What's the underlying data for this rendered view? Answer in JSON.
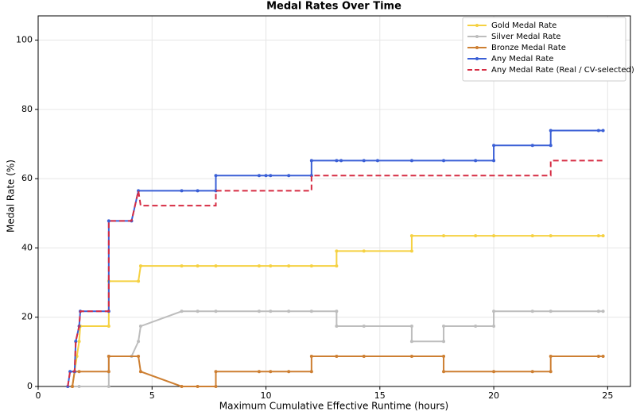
{
  "chart_data": {
    "type": "line",
    "title": "Medal Rates Over Time",
    "x_label": "Maximum Cumulative Effective Runtime (hours)",
    "y_label": "Medal Rate (%)",
    "xlim": [
      0,
      26
    ],
    "ylim": [
      0,
      107
    ],
    "xticks": [
      0,
      5,
      10,
      15,
      20,
      25
    ],
    "yticks": [
      0,
      20,
      40,
      60,
      80,
      100
    ],
    "grid": true,
    "legend": "upper right",
    "series": [
      {
        "name": "Gold Medal Rate",
        "color": "#f5d142",
        "dashed": false,
        "markers": true,
        "x": [
          1.5,
          1.6,
          1.7,
          1.8,
          1.85,
          3.1,
          3.1,
          4.4,
          4.5,
          6.3,
          7,
          7.8,
          9.7,
          10.2,
          11,
          12,
          13.1,
          13.1,
          14.3,
          16.4,
          16.4,
          17.8,
          19.2,
          20,
          21.7,
          22.5,
          24.6,
          24.8
        ],
        "values": [
          0,
          4.3,
          8.7,
          13,
          17.4,
          17.4,
          30.4,
          30.4,
          34.8,
          34.8,
          34.8,
          34.8,
          34.8,
          34.8,
          34.8,
          34.8,
          34.8,
          39.1,
          39.1,
          39.1,
          43.5,
          43.5,
          43.5,
          43.5,
          43.5,
          43.5,
          43.5,
          43.5
        ]
      },
      {
        "name": "Silver Medal Rate",
        "color": "#bdbdbd",
        "dashed": false,
        "markers": true,
        "x": [
          1.5,
          1.8,
          3.1,
          3.1,
          4.1,
          4.4,
          4.5,
          6.3,
          7,
          7.8,
          9.7,
          10.2,
          11,
          12,
          13.1,
          13.1,
          14.3,
          16.4,
          16.4,
          17.8,
          17.8,
          19.2,
          20,
          20,
          21.7,
          22.5,
          24.6,
          24.8
        ],
        "values": [
          0,
          0,
          0,
          8.7,
          8.7,
          13,
          17.4,
          21.7,
          21.7,
          21.7,
          21.7,
          21.7,
          21.7,
          21.7,
          21.7,
          17.4,
          17.4,
          17.4,
          13,
          13,
          17.4,
          17.4,
          17.4,
          21.7,
          21.7,
          21.7,
          21.7,
          21.7
        ]
      },
      {
        "name": "Bronze Medal Rate",
        "color": "#cd7f32",
        "dashed": false,
        "markers": true,
        "x": [
          1.5,
          1.6,
          1.8,
          3.1,
          3.1,
          4.4,
          4.5,
          6.3,
          7,
          7.8,
          7.8,
          9.7,
          10.2,
          11,
          12,
          12,
          13.1,
          14.3,
          16.4,
          17.8,
          17.8,
          20,
          21.7,
          22.5,
          22.5,
          24.6,
          24.8
        ],
        "values": [
          0,
          4.3,
          4.3,
          4.3,
          8.7,
          8.7,
          4.3,
          0,
          0,
          0,
          4.3,
          4.3,
          4.3,
          4.3,
          4.3,
          8.7,
          8.7,
          8.7,
          8.7,
          8.7,
          4.3,
          4.3,
          4.3,
          4.3,
          8.7,
          8.7,
          8.7
        ]
      },
      {
        "name": "Any Medal Rate",
        "color": "#3a5fd6",
        "dashed": false,
        "markers": true,
        "x": [
          1.3,
          1.4,
          1.6,
          1.65,
          1.8,
          1.85,
          3.1,
          3.1,
          4.1,
          4.4,
          6.3,
          7,
          7.8,
          7.8,
          9.7,
          10,
          10.2,
          11,
          12,
          12,
          13.1,
          13.3,
          14.3,
          14.9,
          16.4,
          17.8,
          19.2,
          20,
          20,
          21.7,
          22.5,
          22.5,
          24.6,
          24.8
        ],
        "values": [
          0,
          4.3,
          4.3,
          13,
          17.4,
          21.7,
          21.7,
          47.8,
          47.8,
          56.5,
          56.5,
          56.5,
          56.5,
          60.9,
          60.9,
          60.9,
          60.9,
          60.9,
          60.9,
          65.2,
          65.2,
          65.2,
          65.2,
          65.2,
          65.2,
          65.2,
          65.2,
          65.2,
          69.6,
          69.6,
          69.6,
          73.9,
          73.9,
          73.9
        ]
      },
      {
        "name": "Any Medal Rate (Real / CV-selected)",
        "color": "#d62c43",
        "dashed": true,
        "markers": false,
        "x": [
          1.3,
          1.4,
          1.6,
          1.65,
          1.8,
          1.85,
          3.1,
          3.1,
          4.1,
          4.4,
          4.5,
          7.8,
          7.8,
          12,
          12,
          22.5,
          22.5,
          24.8
        ],
        "values": [
          0,
          4.3,
          4.3,
          13,
          17.4,
          21.7,
          21.7,
          47.8,
          47.8,
          56.5,
          52.2,
          52.2,
          56.5,
          56.5,
          60.9,
          60.9,
          65.2,
          65.2
        ]
      }
    ]
  }
}
